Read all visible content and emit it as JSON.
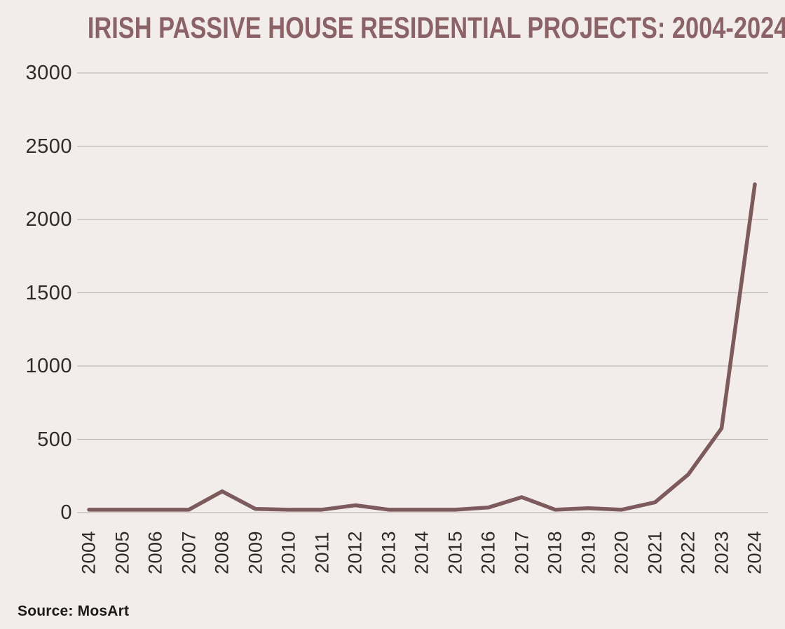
{
  "chart_data": {
    "type": "line",
    "title": "IRISH PASSIVE HOUSE RESIDENTIAL PROJECTS: 2004-2024",
    "categories": [
      "2004",
      "2005",
      "2006",
      "2007",
      "2008",
      "2009",
      "2010",
      "2011",
      "2012",
      "2013",
      "2014",
      "2015",
      "2016",
      "2017",
      "2018",
      "2019",
      "2020",
      "2021",
      "2022",
      "2023",
      "2024"
    ],
    "values": [
      20,
      20,
      20,
      20,
      145,
      25,
      20,
      20,
      50,
      20,
      20,
      20,
      35,
      105,
      20,
      30,
      20,
      70,
      260,
      575,
      2240
    ],
    "xlabel": "",
    "ylabel": "",
    "ylim": [
      0,
      3000
    ],
    "y_ticks": [
      0,
      500,
      1000,
      1500,
      2000,
      2500,
      3000
    ],
    "grid": "horizontal",
    "legend": "none",
    "x_tick_rotation": -90,
    "line_color": "#7d5b5d",
    "gridline_color": "#c1bab8",
    "background_color": "#f2edeb",
    "title_color": "#8b6366",
    "tick_color": "#2e2b2a"
  },
  "source": {
    "text": "Source: MosArt"
  }
}
